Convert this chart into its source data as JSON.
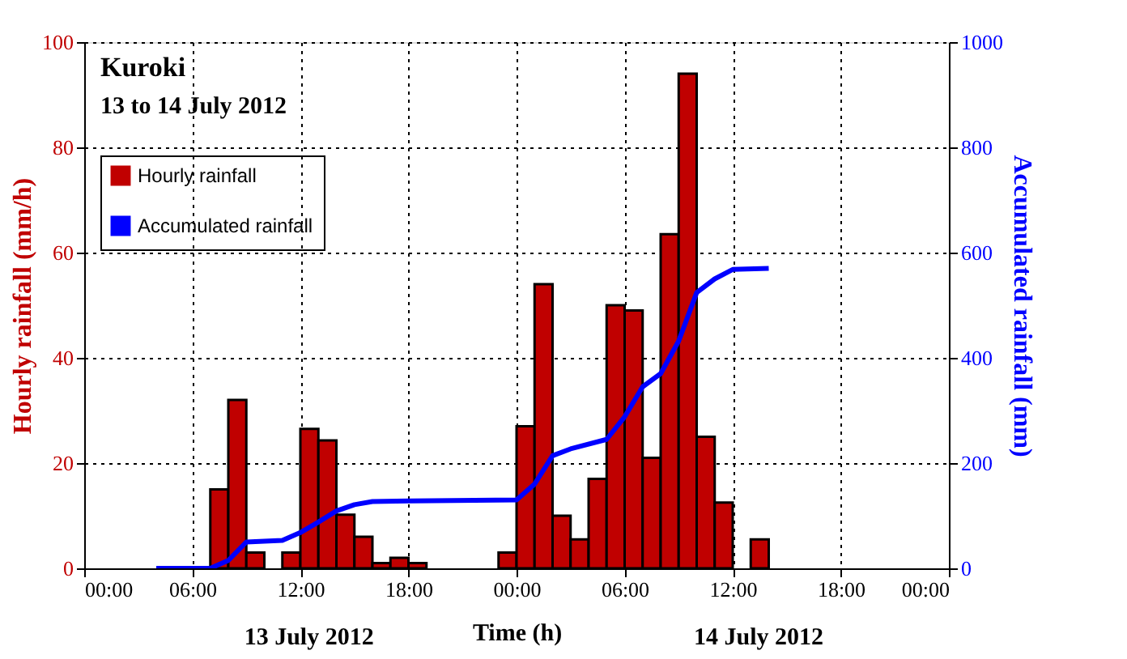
{
  "chart_data": {
    "type": "bar",
    "title": "Kuroki",
    "subtitle": "13 to 14 July 2012",
    "xlabel": "Time (h)",
    "ylabel": "Hourly rainfall (mm/h)",
    "y2label": "Accumulated rainfall (mm)",
    "annotations": [
      "13 July 2012",
      "14 July 2012"
    ],
    "xlim": [
      "2012-07-13T00:00",
      "2012-07-15T00:00"
    ],
    "xticks": [
      {
        "value": "2012-07-13T00:00",
        "label": "00:00"
      },
      {
        "value": "2012-07-13T06:00",
        "label": "06:00"
      },
      {
        "value": "2012-07-13T12:00",
        "label": "12:00"
      },
      {
        "value": "2012-07-13T18:00",
        "label": "18:00"
      },
      {
        "value": "2012-07-14T00:00",
        "label": "00:00"
      },
      {
        "value": "2012-07-14T06:00",
        "label": "06:00"
      },
      {
        "value": "2012-07-14T12:00",
        "label": "12:00"
      },
      {
        "value": "2012-07-14T18:00",
        "label": "18:00"
      },
      {
        "value": "2012-07-15T00:00",
        "label": "00:00"
      }
    ],
    "ylim": [
      0,
      100
    ],
    "yticks": [
      0,
      20,
      40,
      60,
      80,
      100
    ],
    "y2lim": [
      0,
      1000
    ],
    "y2ticks": [
      0,
      200,
      400,
      600,
      800,
      1000
    ],
    "grid": true,
    "legend": "top left",
    "series": [
      {
        "name": "Hourly rainfall",
        "color": "#c00000",
        "x": [
          "2012-07-13T07:30",
          "2012-07-13T08:30",
          "2012-07-13T09:30",
          "2012-07-13T11:30",
          "2012-07-13T12:30",
          "2012-07-13T13:30",
          "2012-07-13T14:30",
          "2012-07-13T15:30",
          "2012-07-13T16:30",
          "2012-07-13T17:30",
          "2012-07-13T18:30",
          "2012-07-13T23:30",
          "2012-07-14T00:30",
          "2012-07-14T01:30",
          "2012-07-14T02:30",
          "2012-07-14T03:30",
          "2012-07-14T04:30",
          "2012-07-14T05:30",
          "2012-07-14T06:30",
          "2012-07-14T07:30",
          "2012-07-14T08:30",
          "2012-07-14T09:30",
          "2012-07-14T10:30",
          "2012-07-14T11:30",
          "2012-07-14T13:30"
        ],
        "values": [
          15,
          32,
          3,
          3,
          26.5,
          24.3,
          10.2,
          6,
          1,
          2,
          1,
          3,
          27,
          54,
          10,
          5.5,
          17,
          50,
          49,
          21,
          63.5,
          94,
          25,
          12.5,
          5.5
        ]
      },
      {
        "name": "Accumulated rainfall",
        "type": "line",
        "axis": "y2",
        "color": "#0000ff",
        "line_style": "solid",
        "marker": "none",
        "x": [
          "2012-07-13T04:00",
          "2012-07-13T07:00",
          "2012-07-13T08:00",
          "2012-07-13T09:00",
          "2012-07-13T11:00",
          "2012-07-13T12:00",
          "2012-07-13T13:00",
          "2012-07-13T14:00",
          "2012-07-13T15:00",
          "2012-07-13T16:00",
          "2012-07-13T18:00",
          "2012-07-14T00:00",
          "2012-07-14T01:00",
          "2012-07-14T02:00",
          "2012-07-14T03:00",
          "2012-07-14T05:00",
          "2012-07-14T06:00",
          "2012-07-14T07:00",
          "2012-07-14T08:00",
          "2012-07-14T09:00",
          "2012-07-14T10:00",
          "2012-07-14T11:00",
          "2012-07-14T12:00",
          "2012-07-14T14:00"
        ],
        "values": [
          0,
          0,
          15,
          50,
          53,
          68,
          88,
          109,
          121,
          127,
          128,
          130,
          160,
          214,
          227,
          245,
          288,
          345,
          370,
          432,
          524,
          550,
          568,
          570
        ]
      }
    ]
  }
}
